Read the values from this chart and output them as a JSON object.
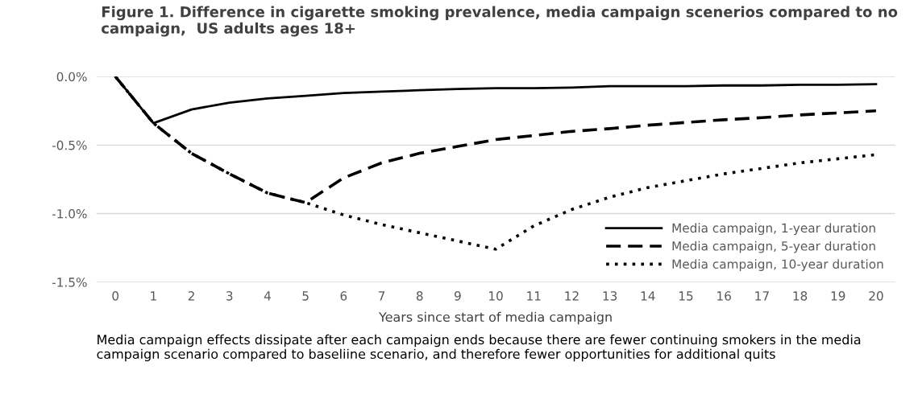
{
  "chart_data": {
    "type": "line",
    "title": "Figure 1. Difference in cigarette smoking prevalence, media campaign scenerios compared to no campaign,  US adults ages 18+",
    "xlabel": "Years since start of media campaign",
    "categories": [
      "0",
      "1",
      "2",
      "3",
      "4",
      "5",
      "6",
      "7",
      "8",
      "9",
      "10",
      "11",
      "12",
      "13",
      "14",
      "15",
      "16",
      "17",
      "18",
      "19",
      "20"
    ],
    "series": [
      {
        "name": "Media campaign, 1-year duration",
        "color": "#000000",
        "line_style": "solid",
        "values": [
          0,
          -0.34,
          -0.24,
          -0.19,
          -0.16,
          -0.14,
          -0.12,
          -0.11,
          -0.1,
          -0.09,
          -0.085,
          -0.085,
          -0.08,
          -0.07,
          -0.07,
          -0.07,
          -0.065,
          -0.065,
          -0.06,
          -0.06,
          -0.055
        ]
      },
      {
        "name": "Media campaign, 5-year duration",
        "color": "#000000",
        "line_style": "dashed",
        "values": [
          0,
          -0.34,
          -0.56,
          -0.71,
          -0.85,
          -0.92,
          -0.74,
          -0.63,
          -0.56,
          -0.51,
          -0.46,
          -0.43,
          -0.4,
          -0.38,
          -0.355,
          -0.335,
          -0.315,
          -0.3,
          -0.28,
          -0.265,
          -0.25
        ]
      },
      {
        "name": "Media campaign, 10-year duration",
        "color": "#000000",
        "line_style": "dotted",
        "values": [
          0,
          -0.34,
          -0.56,
          -0.71,
          -0.85,
          -0.92,
          -1.01,
          -1.08,
          -1.14,
          -1.2,
          -1.26,
          -1.09,
          -0.97,
          -0.88,
          -0.81,
          -0.76,
          -0.71,
          -0.67,
          -0.63,
          -0.6,
          -0.57
        ]
      }
    ],
    "ylim": [
      -1.5,
      0
    ],
    "yticks": [
      {
        "value": -1.5,
        "label": "-1.5%"
      },
      {
        "value": -1.0,
        "label": "-1.0%"
      },
      {
        "value": -0.5,
        "label": "-0.5%"
      },
      {
        "value": 0,
        "label": "0.0%"
      }
    ],
    "grid": "y",
    "legend": "bottom right",
    "marker": "none",
    "annotations": [
      "Media campaign effects dissipate after each campaign ends because there are fewer continuing smokers in the media campaign scenario compared to baseliine scenario, and therefore fewer opportunities for additional quits"
    ]
  }
}
